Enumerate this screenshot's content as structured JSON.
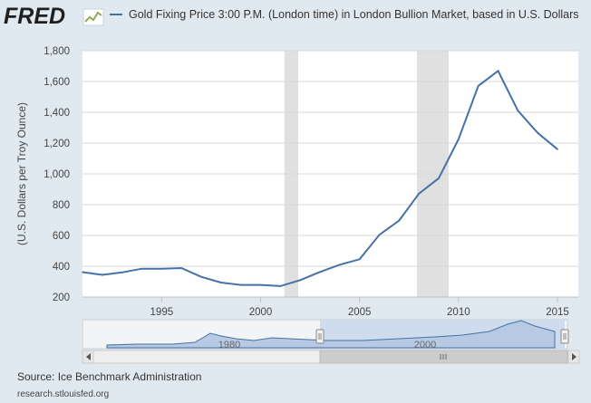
{
  "header": {
    "logo_text": "FRED",
    "legend_label": "Gold Fixing Price 3:00 P.M. (London time) in London Bullion Market, based in U.S. Dollars"
  },
  "colors": {
    "series": "#4572a7",
    "background": "#e1e9f0",
    "plot_background": "#ffffff",
    "recession": "#e0e0e0",
    "navigator_fill": "#b7c9e3",
    "navigator_mask": "#c3d4ea",
    "logo": "#1f1f1f",
    "logo_icon": "#8faa5b"
  },
  "footer": {
    "source": "Source: Ice Benchmark Administration",
    "url": "research.stlouisfed.org"
  },
  "navigator": {
    "labels": [
      "1980",
      "2000"
    ]
  },
  "chart_data": {
    "type": "line",
    "title": "",
    "xlabel": "",
    "ylabel": "(U.S. Dollars per Troy Ounce)",
    "xlim": [
      1991,
      2015
    ],
    "ylim": [
      200,
      1800
    ],
    "x_ticks": [
      1995,
      2000,
      2005,
      2010,
      2015
    ],
    "y_ticks": [
      200,
      400,
      600,
      800,
      1000,
      1200,
      1400,
      1600,
      1800
    ],
    "y_tick_labels": [
      "200",
      "400",
      "600",
      "800",
      "1,000",
      "1,200",
      "1,400",
      "1,600",
      "1,800"
    ],
    "grid": "horizontal",
    "recessions": [
      [
        2001.2,
        2001.9
      ],
      [
        2007.9,
        2009.5
      ]
    ],
    "series": [
      {
        "name": "Gold Fixing Price 3:00 P.M. (London time) in London Bullion Market, based in U.S. Dollars",
        "x": [
          1991,
          1992,
          1993,
          1994,
          1995,
          1996,
          1997,
          1998,
          1999,
          2000,
          2001,
          2002,
          2003,
          2004,
          2005,
          2006,
          2007,
          2008,
          2009,
          2010,
          2011,
          2012,
          2013,
          2014,
          2015
        ],
        "values": [
          362,
          344,
          360,
          384,
          384,
          388,
          331,
          294,
          279,
          279,
          271,
          310,
          363,
          410,
          445,
          604,
          697,
          872,
          972,
          1225,
          1572,
          1669,
          1411,
          1266,
          1160
        ]
      }
    ]
  }
}
